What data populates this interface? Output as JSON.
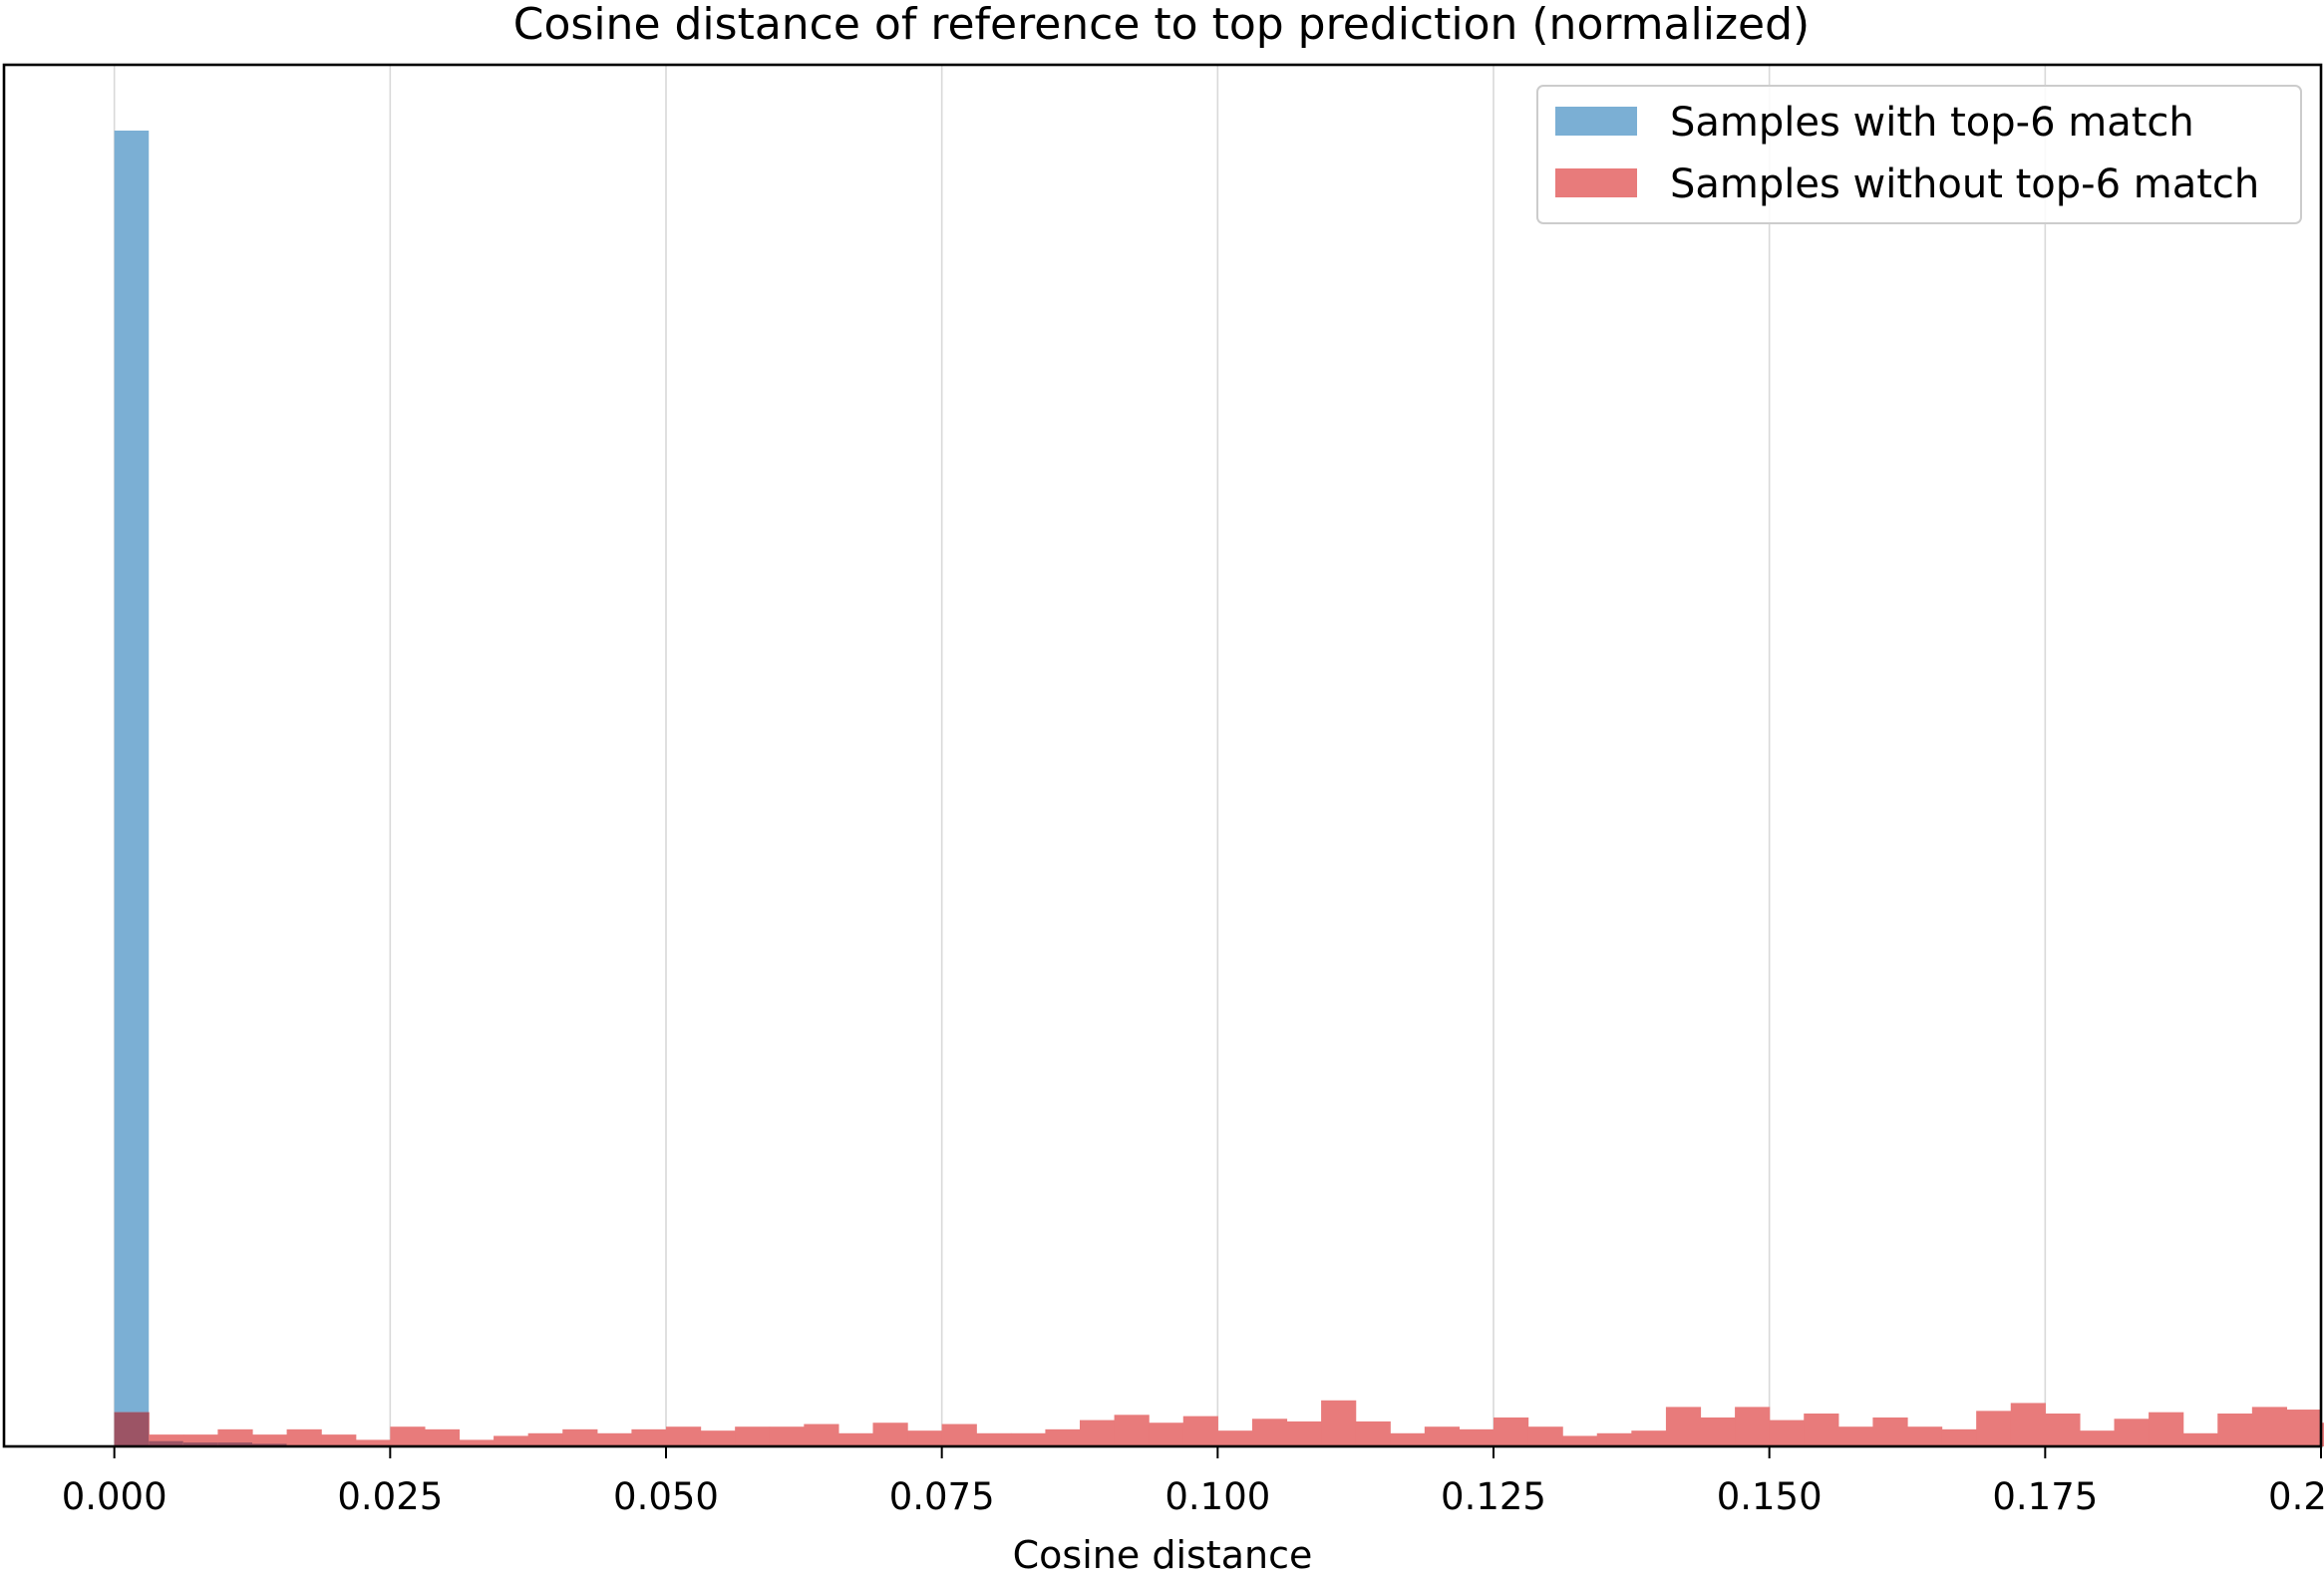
{
  "chart_data": {
    "type": "bar",
    "title": "Cosine distance of reference to top prediction (normalized)",
    "xlabel": "Cosine distance",
    "ylabel": "",
    "xlim": [
      -0.01,
      0.2
    ],
    "ylim": [
      0,
      1.05
    ],
    "x_ticks": [
      "0.000",
      "0.025",
      "0.050",
      "0.075",
      "0.100",
      "0.125",
      "0.150",
      "0.175",
      "0.200"
    ],
    "x_tick_values": [
      0,
      0.025,
      0.05,
      0.075,
      0.1,
      0.125,
      0.15,
      0.175,
      0.2
    ],
    "grid": "vertical",
    "legend_position": "top-right",
    "bin_width": 0.003125,
    "series": [
      {
        "name": "Samples with top-6 match",
        "color": "#7bafd4",
        "bins": [
          {
            "x0": 0,
            "value": 1.0
          },
          {
            "x0": 0.003125,
            "value": 0.004
          },
          {
            "x0": 0.00625,
            "value": 0.003
          },
          {
            "x0": 0.009375,
            "value": 0.003
          },
          {
            "x0": 0.0125,
            "value": 0.002
          }
        ]
      },
      {
        "name": "Samples without top-6 match",
        "color": "#e87b7b",
        "values": [
          0.026,
          0.009,
          0.009,
          0.013,
          0.009,
          0.013,
          0.009,
          0.005,
          0.015,
          0.013,
          0.005,
          0.008,
          0.01,
          0.013,
          0.01,
          0.013,
          0.015,
          0.012,
          0.015,
          0.015,
          0.017,
          0.01,
          0.018,
          0.012,
          0.017,
          0.01,
          0.01,
          0.013,
          0.02,
          0.024,
          0.018,
          0.023,
          0.012,
          0.021,
          0.019,
          0.035,
          0.019,
          0.01,
          0.015,
          0.013,
          0.022,
          0.015,
          0.008,
          0.01,
          0.012,
          0.03,
          0.022,
          0.03,
          0.02,
          0.025,
          0.015,
          0.022,
          0.015,
          0.013,
          0.027,
          0.033,
          0.025,
          0.012,
          0.021,
          0.026,
          0.01,
          0.025,
          0.03,
          0.028,
          0.018
        ]
      }
    ],
    "overlap_color": "#9c5465"
  }
}
